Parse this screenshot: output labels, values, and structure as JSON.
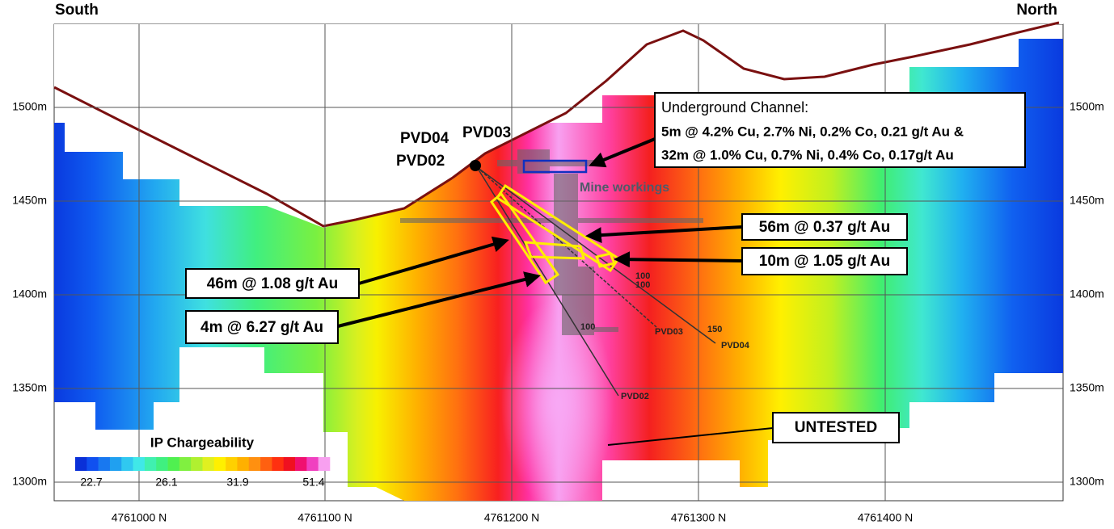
{
  "section": {
    "left_label": "South",
    "right_label": "North",
    "y_axis": {
      "labels": [
        "1500m",
        "1450m",
        "1400m",
        "1350m",
        "1300m"
      ]
    },
    "x_axis": {
      "labels": [
        "4761000 N",
        "4761100 N",
        "4761200 N",
        "4761300 N",
        "4761400 N"
      ]
    },
    "collar_labels": [
      "PVD04",
      "PVD03",
      "PVD02"
    ],
    "mine_workings": "Mine workings",
    "hole_end_labels": [
      "PVD03",
      "PVD04",
      "PVD02"
    ],
    "depth_labels": [
      "100",
      "100",
      "100",
      "150"
    ],
    "callouts": {
      "underground": [
        "Underground Channel:",
        "5m @ 4.2% Cu, 2.7% Ni, 0.2% Co, 0.21 g/t Au  &",
        "32m @ 1.0% Cu, 0.7% Ni, 0.4% Co, 0.17g/t Au"
      ],
      "pvd04": "56m @ 0.37 g/t Au",
      "pvd03": "10m @ 1.05 g/t Au",
      "pvd02a": "46m @ 1.08 g/t Au",
      "pvd02b": "4m @ 6.27 g/t Au",
      "untested": "UNTESTED"
    },
    "legend": {
      "title": "IP Chargeability",
      "labels": [
        "22.7",
        "26.1",
        "31.9",
        "51.4"
      ]
    }
  }
}
